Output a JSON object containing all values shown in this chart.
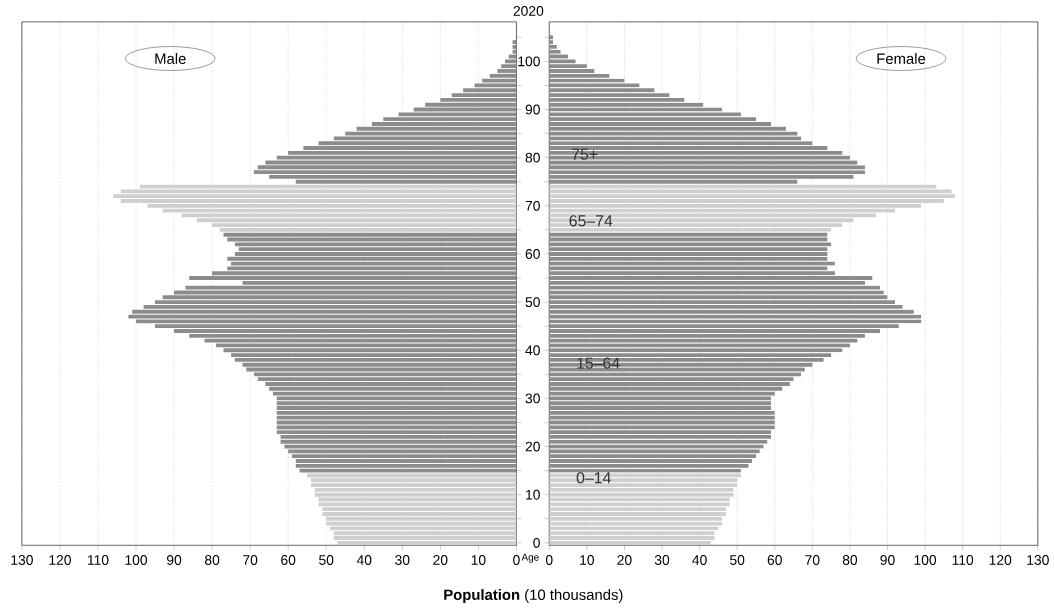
{
  "chart_data": [
    {
      "type": "bar",
      "orientation": "horizontal",
      "title": "2020",
      "xlabel": "**Population** (10 thousands)",
      "ylabel": "Age",
      "categories": [
        null,
        null,
        null,
        null,
        null,
        "100",
        null,
        null,
        null,
        null,
        null,
        null,
        null,
        null,
        null,
        "90",
        null,
        null,
        null,
        null,
        null,
        null,
        null,
        null,
        null,
        "80",
        null,
        null,
        null,
        null,
        null,
        null,
        null,
        null,
        null,
        "70",
        null,
        null,
        null,
        null,
        null,
        null,
        null,
        null,
        null,
        "60",
        null,
        null,
        null,
        null,
        null,
        null,
        null,
        null,
        null,
        "50",
        null,
        null,
        null,
        null,
        null,
        null,
        null,
        null,
        null,
        "40",
        null,
        null,
        null,
        null,
        null,
        null,
        null,
        null,
        null,
        "30",
        null,
        null,
        null,
        null,
        null,
        null,
        null,
        null,
        null,
        "20",
        null,
        null,
        null,
        null,
        null,
        null,
        null,
        null,
        null,
        "10",
        null,
        null,
        null,
        null,
        null,
        null,
        null,
        null,
        null,
        "0"
      ],
      "series": [
        {
          "name": "Male",
          "values": [
            0,
            1,
            1,
            1,
            2,
            3,
            4,
            5,
            7,
            9,
            11,
            14,
            17,
            20,
            24,
            27,
            31,
            35,
            38,
            42,
            45,
            48,
            52,
            56,
            60,
            63,
            66,
            68,
            69,
            65,
            58,
            99,
            104,
            106,
            104,
            97,
            93,
            88,
            84,
            80,
            78,
            77,
            76,
            74,
            73,
            74,
            76,
            75,
            76,
            80,
            86,
            72,
            87,
            90,
            93,
            95,
            98,
            101,
            102,
            100,
            95,
            90,
            86,
            82,
            79,
            77,
            75,
            74,
            72,
            71,
            69,
            68,
            66,
            65,
            64,
            63,
            63,
            63,
            63,
            63,
            63,
            63,
            63,
            62,
            62,
            61,
            60,
            59,
            58,
            58,
            57,
            55,
            54,
            54,
            53,
            53,
            52,
            52,
            51,
            51,
            50,
            50,
            49,
            48,
            48,
            47
          ],
          "colors": [
            "#8c8c8c",
            "#8c8c8c",
            "#8c8c8c",
            "#8c8c8c",
            "#8c8c8c",
            "#8c8c8c",
            "#8c8c8c",
            "#8c8c8c",
            "#8c8c8c",
            "#8c8c8c",
            "#8c8c8c",
            "#8c8c8c",
            "#8c8c8c",
            "#8c8c8c",
            "#8c8c8c",
            "#8c8c8c",
            "#8c8c8c",
            "#8c8c8c",
            "#8c8c8c",
            "#8c8c8c",
            "#8c8c8c",
            "#8c8c8c",
            "#8c8c8c",
            "#8c8c8c",
            "#8c8c8c",
            "#8c8c8c",
            "#8c8c8c",
            "#8c8c8c",
            "#8c8c8c",
            "#8c8c8c",
            "#8c8c8c",
            "#cfcfcf",
            "#cfcfcf",
            "#cfcfcf",
            "#cfcfcf",
            "#cfcfcf",
            "#cfcfcf",
            "#cfcfcf",
            "#cfcfcf",
            "#cfcfcf",
            "#cfcfcf",
            "#8c8c8c",
            "#8c8c8c",
            "#8c8c8c",
            "#8c8c8c",
            "#8c8c8c",
            "#8c8c8c",
            "#8c8c8c",
            "#8c8c8c",
            "#8c8c8c",
            "#8c8c8c",
            "#8c8c8c",
            "#8c8c8c",
            "#8c8c8c",
            "#8c8c8c",
            "#8c8c8c",
            "#8c8c8c",
            "#8c8c8c",
            "#8c8c8c",
            "#8c8c8c",
            "#8c8c8c",
            "#8c8c8c",
            "#8c8c8c",
            "#8c8c8c",
            "#8c8c8c",
            "#8c8c8c",
            "#8c8c8c",
            "#8c8c8c",
            "#8c8c8c",
            "#8c8c8c",
            "#8c8c8c",
            "#8c8c8c",
            "#8c8c8c",
            "#8c8c8c",
            "#8c8c8c",
            "#8c8c8c",
            "#8c8c8c",
            "#8c8c8c",
            "#8c8c8c",
            "#8c8c8c",
            "#8c8c8c",
            "#8c8c8c",
            "#8c8c8c",
            "#8c8c8c",
            "#8c8c8c",
            "#8c8c8c",
            "#8c8c8c",
            "#8c8c8c",
            "#8c8c8c",
            "#8c8c8c",
            "#8c8c8c",
            "#cfcfcf",
            "#cfcfcf",
            "#cfcfcf",
            "#cfcfcf",
            "#cfcfcf",
            "#cfcfcf",
            "#cfcfcf",
            "#cfcfcf",
            "#cfcfcf",
            "#cfcfcf",
            "#cfcfcf",
            "#cfcfcf",
            "#cfcfcf",
            "#cfcfcf",
            "#cfcfcf"
          ]
        }
      ],
      "xlim": [
        130,
        0
      ],
      "xticks": [
        130,
        120,
        110,
        100,
        90,
        80,
        70,
        60,
        50,
        40,
        30,
        20,
        10,
        0
      ],
      "grid": "x"
    },
    {
      "type": "bar",
      "orientation": "horizontal",
      "categories": [
        null,
        null,
        null,
        null,
        null,
        "100",
        null,
        null,
        null,
        null,
        null,
        null,
        null,
        null,
        null,
        "90",
        null,
        null,
        null,
        null,
        null,
        null,
        null,
        null,
        null,
        "80",
        null,
        null,
        null,
        null,
        null,
        null,
        null,
        null,
        null,
        "70",
        null,
        null,
        null,
        null,
        null,
        null,
        null,
        null,
        null,
        "60",
        null,
        null,
        null,
        null,
        null,
        null,
        null,
        null,
        null,
        "50",
        null,
        null,
        null,
        null,
        null,
        null,
        null,
        null,
        null,
        "40",
        null,
        null,
        null,
        null,
        null,
        null,
        null,
        null,
        null,
        "30",
        null,
        null,
        null,
        null,
        null,
        null,
        null,
        null,
        null,
        "20",
        null,
        null,
        null,
        null,
        null,
        null,
        null,
        null,
        null,
        "10",
        null,
        null,
        null,
        null,
        null,
        null,
        null,
        null,
        null,
        "0"
      ],
      "series": [
        {
          "name": "Female",
          "values": [
            1,
            1,
            2,
            3,
            5,
            7,
            10,
            12,
            16,
            20,
            24,
            28,
            32,
            36,
            41,
            46,
            51,
            55,
            59,
            63,
            66,
            67,
            70,
            74,
            78,
            80,
            82,
            84,
            84,
            81,
            66,
            103,
            107,
            108,
            105,
            99,
            92,
            87,
            81,
            78,
            75,
            74,
            74,
            75,
            74,
            74,
            74,
            76,
            74,
            76,
            86,
            84,
            88,
            89,
            90,
            92,
            94,
            97,
            99,
            99,
            93,
            88,
            84,
            82,
            80,
            78,
            75,
            73,
            70,
            68,
            67,
            65,
            64,
            62,
            60,
            59,
            59,
            59,
            60,
            60,
            60,
            60,
            59,
            59,
            58,
            57,
            56,
            55,
            54,
            53,
            51,
            51,
            50,
            50,
            49,
            49,
            48,
            48,
            47,
            47,
            46,
            46,
            45,
            44,
            44,
            43
          ],
          "colors": [
            "#8c8c8c",
            "#8c8c8c",
            "#8c8c8c",
            "#8c8c8c",
            "#8c8c8c",
            "#8c8c8c",
            "#8c8c8c",
            "#8c8c8c",
            "#8c8c8c",
            "#8c8c8c",
            "#8c8c8c",
            "#8c8c8c",
            "#8c8c8c",
            "#8c8c8c",
            "#8c8c8c",
            "#8c8c8c",
            "#8c8c8c",
            "#8c8c8c",
            "#8c8c8c",
            "#8c8c8c",
            "#8c8c8c",
            "#8c8c8c",
            "#8c8c8c",
            "#8c8c8c",
            "#8c8c8c",
            "#8c8c8c",
            "#8c8c8c",
            "#8c8c8c",
            "#8c8c8c",
            "#8c8c8c",
            "#8c8c8c",
            "#cfcfcf",
            "#cfcfcf",
            "#cfcfcf",
            "#cfcfcf",
            "#cfcfcf",
            "#cfcfcf",
            "#cfcfcf",
            "#cfcfcf",
            "#cfcfcf",
            "#cfcfcf",
            "#8c8c8c",
            "#8c8c8c",
            "#8c8c8c",
            "#8c8c8c",
            "#8c8c8c",
            "#8c8c8c",
            "#8c8c8c",
            "#8c8c8c",
            "#8c8c8c",
            "#8c8c8c",
            "#8c8c8c",
            "#8c8c8c",
            "#8c8c8c",
            "#8c8c8c",
            "#8c8c8c",
            "#8c8c8c",
            "#8c8c8c",
            "#8c8c8c",
            "#8c8c8c",
            "#8c8c8c",
            "#8c8c8c",
            "#8c8c8c",
            "#8c8c8c",
            "#8c8c8c",
            "#8c8c8c",
            "#8c8c8c",
            "#8c8c8c",
            "#8c8c8c",
            "#8c8c8c",
            "#8c8c8c",
            "#8c8c8c",
            "#8c8c8c",
            "#8c8c8c",
            "#8c8c8c",
            "#8c8c8c",
            "#8c8c8c",
            "#8c8c8c",
            "#8c8c8c",
            "#8c8c8c",
            "#8c8c8c",
            "#8c8c8c",
            "#8c8c8c",
            "#8c8c8c",
            "#8c8c8c",
            "#8c8c8c",
            "#8c8c8c",
            "#8c8c8c",
            "#8c8c8c",
            "#8c8c8c",
            "#8c8c8c",
            "#cfcfcf",
            "#cfcfcf",
            "#cfcfcf",
            "#cfcfcf",
            "#cfcfcf",
            "#cfcfcf",
            "#cfcfcf",
            "#cfcfcf",
            "#cfcfcf",
            "#cfcfcf",
            "#cfcfcf",
            "#cfcfcf",
            "#cfcfcf",
            "#cfcfcf",
            "#cfcfcf"
          ]
        }
      ],
      "xlim": [
        0,
        130
      ],
      "xticks": [
        0,
        10,
        20,
        30,
        40,
        50,
        60,
        70,
        80,
        90,
        100,
        110,
        120,
        130
      ],
      "grid": "x",
      "tick_labels": "x",
      "annotations": [
        "75+",
        "65–74",
        "15–64",
        "0–14"
      ]
    }
  ]
}
